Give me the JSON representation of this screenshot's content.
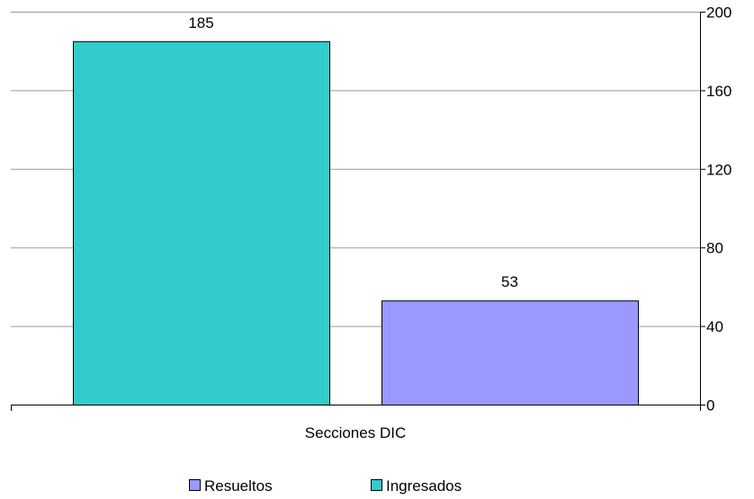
{
  "chart_data": {
    "type": "bar",
    "categories": [
      "Secciones DIC"
    ],
    "series": [
      {
        "name": "Ingresados",
        "values": [
          185
        ],
        "color": "#33CCCC"
      },
      {
        "name": "Resueltos",
        "values": [
          53
        ],
        "color": "#9999FF"
      }
    ],
    "data_labels": [
      "185",
      "53"
    ],
    "xlabel": "",
    "ylabel": "",
    "ylim": [
      0,
      200
    ],
    "yticks": [
      "0",
      "40",
      "80",
      "120",
      "160",
      "200"
    ],
    "y_axis_side": "right",
    "grid": true,
    "legend": {
      "position": "bottom",
      "entries": [
        "Resueltos",
        "Ingresados"
      ]
    }
  }
}
